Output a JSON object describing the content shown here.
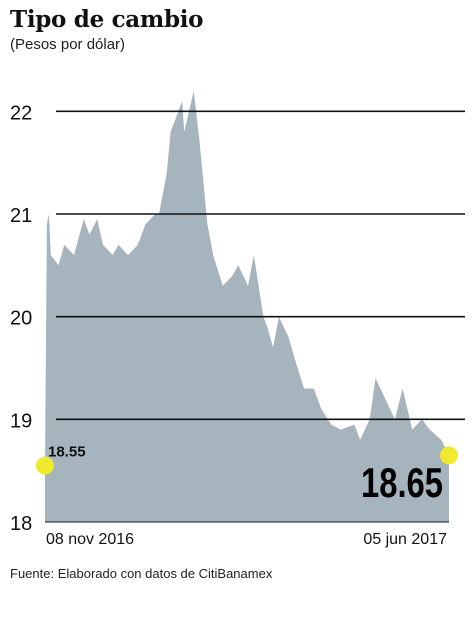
{
  "header": {
    "title": "Tipo de cambio",
    "subtitle": "(Pesos por dólar)"
  },
  "footer": {
    "source": "Fuente: Elaborado con datos de CitiBanamex"
  },
  "colors": {
    "area_fill": "#a6b4bd",
    "gridline": "#111111",
    "highlight": "#f0ea2e",
    "text": "#111111"
  },
  "chart_data": {
    "type": "area",
    "title": "Tipo de cambio",
    "subtitle": "(Pesos por dólar)",
    "xlabel": "",
    "ylabel": "",
    "ylim": [
      18,
      22.5
    ],
    "yticks": [
      18,
      19,
      20,
      21,
      22
    ],
    "grid": true,
    "x_tick_labels": [
      "08 nov 2016",
      "05 jun 2017"
    ],
    "x": [
      "2016-11-08",
      "2016-11-09",
      "2016-11-10",
      "2016-11-11",
      "2016-11-15",
      "2016-11-18",
      "2016-11-23",
      "2016-11-28",
      "2016-12-01",
      "2016-12-05",
      "2016-12-08",
      "2016-12-13",
      "2016-12-16",
      "2016-12-21",
      "2016-12-26",
      "2016-12-30",
      "2017-01-04",
      "2017-01-06",
      "2017-01-10",
      "2017-01-12",
      "2017-01-16",
      "2017-01-18",
      "2017-01-19",
      "2017-01-24",
      "2017-01-27",
      "2017-01-31",
      "2017-02-03",
      "2017-02-08",
      "2017-02-13",
      "2017-02-16",
      "2017-02-21",
      "2017-02-24",
      "2017-03-01",
      "2017-03-03",
      "2017-03-06",
      "2017-03-09",
      "2017-03-14",
      "2017-03-17",
      "2017-03-22",
      "2017-03-27",
      "2017-03-31",
      "2017-04-05",
      "2017-04-10",
      "2017-04-17",
      "2017-04-20",
      "2017-04-25",
      "2017-04-28",
      "2017-05-03",
      "2017-05-08",
      "2017-05-12",
      "2017-05-17",
      "2017-05-22",
      "2017-05-26",
      "2017-06-01",
      "2017-06-05"
    ],
    "series": [
      {
        "values": [
          18.55,
          20.9,
          21.0,
          20.6,
          20.5,
          20.7,
          20.6,
          20.95,
          20.8,
          20.95,
          20.7,
          20.6,
          20.7,
          20.6,
          20.7,
          20.9,
          21.0,
          21.0,
          21.4,
          21.8,
          22.0,
          22.1,
          21.8,
          22.2,
          21.7,
          20.9,
          20.6,
          20.3,
          20.4,
          20.5,
          20.3,
          20.6,
          20.0,
          19.9,
          19.7,
          20.0,
          19.8,
          19.6,
          19.3,
          19.3,
          19.1,
          18.95,
          18.9,
          18.95,
          18.8,
          19.0,
          19.4,
          19.2,
          19.0,
          19.3,
          18.9,
          19.0,
          18.9,
          18.8,
          18.65
        ]
      }
    ],
    "annotations": [
      {
        "label": "18.55",
        "x": "2016-11-08",
        "y": 18.55
      },
      {
        "label": "18.65",
        "x": "2017-06-05",
        "y": 18.65
      }
    ]
  }
}
